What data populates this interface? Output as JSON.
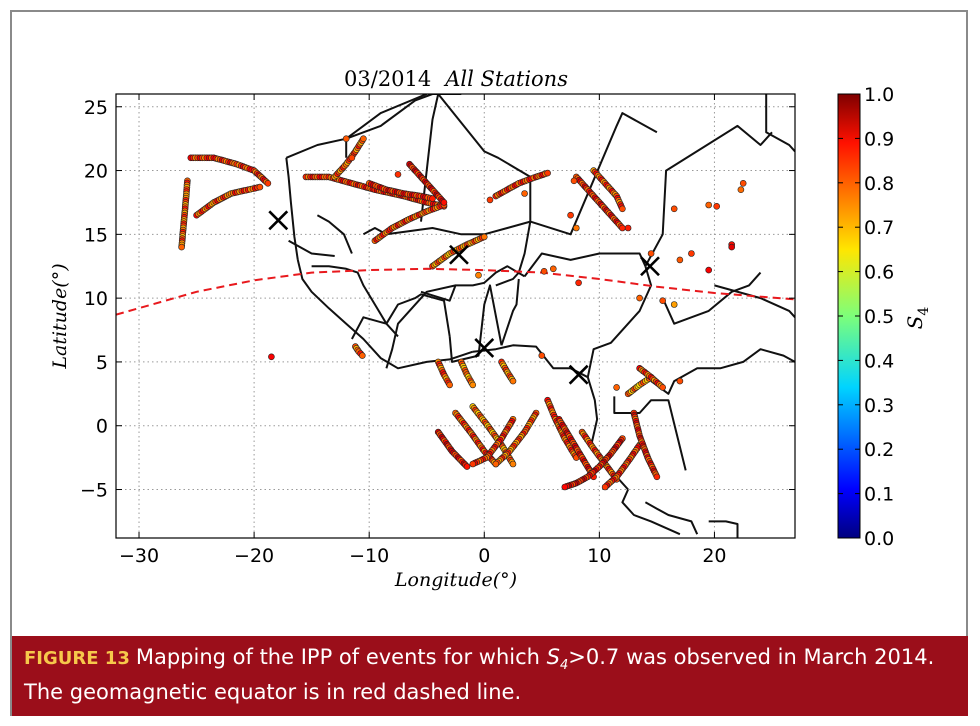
{
  "chart_data": {
    "type": "scatter",
    "title_date": "03/2014",
    "title_suffix": "All Stations",
    "xlabel": "Longitude(°)",
    "ylabel": "Latitude(°)",
    "xlim": [
      -32,
      27
    ],
    "ylim": [
      -8.8,
      26
    ],
    "xticks": [
      "−30",
      "−20",
      "−10",
      "0",
      "10",
      "20"
    ],
    "xtick_values": [
      -30,
      -20,
      -10,
      0,
      10,
      20
    ],
    "yticks": [
      "25",
      "20",
      "15",
      "10",
      "5",
      "0",
      "−5"
    ],
    "ytick_values": [
      25,
      20,
      15,
      10,
      5,
      0,
      -5
    ],
    "grid": true,
    "colorbar": {
      "label": "S4",
      "range": [
        0.0,
        1.0
      ],
      "ticks": [
        "1.0",
        "0.9",
        "0.8",
        "0.7",
        "0.6",
        "0.5",
        "0.4",
        "0.3",
        "0.2",
        "0.1",
        "0.0"
      ],
      "tick_values": [
        1.0,
        0.9,
        0.8,
        0.7,
        0.6,
        0.5,
        0.4,
        0.3,
        0.2,
        0.1,
        0.0
      ],
      "colormap": "jet"
    },
    "stations": [
      {
        "lon": -17.9,
        "lat": 16.1
      },
      {
        "lon": -2.2,
        "lat": 13.4
      },
      {
        "lon": 0.0,
        "lat": 6.1
      },
      {
        "lon": 8.2,
        "lat": 4.0
      },
      {
        "lon": 14.4,
        "lat": 12.5
      }
    ],
    "magnetic_equator": {
      "lon": [
        -32,
        -25,
        -20,
        -15,
        -10,
        -5,
        0,
        5,
        10,
        15,
        20,
        27
      ],
      "lat": [
        8.7,
        10.5,
        11.4,
        12.0,
        12.2,
        12.3,
        12.2,
        12.0,
        11.5,
        10.9,
        10.4,
        9.9
      ]
    },
    "ipp_tracks": [
      {
        "lon": [
          -25.8,
          -25.9,
          -26.0,
          -26.1,
          -26.2,
          -26.3
        ],
        "lat": [
          19.2,
          18.0,
          17.0,
          16.0,
          15.0,
          14.0
        ],
        "s4": 0.78
      },
      {
        "lon": [
          -25.5,
          -23.5,
          -21.5,
          -20.0,
          -18.8
        ],
        "lat": [
          21.0,
          21.0,
          20.5,
          20.0,
          19.0
        ],
        "s4": 0.82
      },
      {
        "lon": [
          -25.0,
          -23.5,
          -22.0,
          -20.5,
          -19.5
        ],
        "lat": [
          16.5,
          17.5,
          18.2,
          18.5,
          18.7
        ],
        "s4": 0.8
      },
      {
        "lon": [
          -15.5,
          -13.5,
          -11.5,
          -9.5,
          -7.0,
          -5.0,
          -3.5
        ],
        "lat": [
          19.5,
          19.5,
          19.0,
          18.5,
          18.0,
          17.5,
          17.2
        ],
        "s4": 0.83
      },
      {
        "lon": [
          -13.0,
          -12.0,
          -11.2,
          -10.5
        ],
        "lat": [
          19.5,
          20.5,
          21.5,
          22.5
        ],
        "s4": 0.78
      },
      {
        "lon": [
          -10.0,
          -8.5,
          -7.0,
          -5.5,
          -4.5
        ],
        "lat": [
          19.0,
          18.5,
          18.2,
          18.0,
          17.8
        ],
        "s4": 0.85
      },
      {
        "lon": [
          -9.5,
          -8.0,
          -6.5,
          -5.0,
          -3.5
        ],
        "lat": [
          14.5,
          15.5,
          16.2,
          16.8,
          17.3
        ],
        "s4": 0.8
      },
      {
        "lon": [
          -6.5,
          -5.5,
          -4.5,
          -3.5
        ],
        "lat": [
          20.5,
          19.5,
          18.5,
          17.5
        ],
        "s4": 0.86
      },
      {
        "lon": [
          -4.5,
          -3.0,
          -1.5,
          0.0
        ],
        "lat": [
          12.5,
          13.5,
          14.2,
          14.8
        ],
        "s4": 0.76
      },
      {
        "lon": [
          1.0,
          2.0,
          3.0,
          4.5,
          5.5
        ],
        "lat": [
          18.0,
          18.5,
          19.0,
          19.5,
          19.8
        ],
        "s4": 0.82
      },
      {
        "lon": [
          8.0,
          9.0,
          10.0,
          11.0,
          12.0
        ],
        "lat": [
          19.5,
          18.5,
          17.5,
          16.5,
          15.5
        ],
        "s4": 0.84
      },
      {
        "lon": [
          9.5,
          10.5,
          11.5,
          12.0
        ],
        "lat": [
          20.0,
          19.0,
          18.0,
          17.0
        ],
        "s4": 0.8
      },
      {
        "lon": [
          -4.0,
          -3.5,
          -3.0
        ],
        "lat": [
          5.0,
          4.0,
          3.2
        ],
        "s4": 0.78
      },
      {
        "lon": [
          -2.0,
          -1.5,
          -1.0
        ],
        "lat": [
          5.0,
          4.0,
          3.2
        ],
        "s4": 0.74
      },
      {
        "lon": [
          1.5,
          2.0,
          2.5
        ],
        "lat": [
          5.0,
          4.2,
          3.5
        ],
        "s4": 0.76
      },
      {
        "lon": [
          -4.0,
          -2.8,
          -1.5
        ],
        "lat": [
          -0.5,
          -2.0,
          -3.2
        ],
        "s4": 0.86
      },
      {
        "lon": [
          -2.5,
          -1.2,
          0.0,
          1.0
        ],
        "lat": [
          1.0,
          -0.5,
          -2.0,
          -3.0
        ],
        "s4": 0.8
      },
      {
        "lon": [
          -1.0,
          0.3,
          1.5,
          2.5
        ],
        "lat": [
          1.5,
          0.0,
          -1.5,
          -3.0
        ],
        "s4": 0.75
      },
      {
        "lon": [
          2.5,
          1.5,
          0.2,
          -1.0
        ],
        "lat": [
          0.5,
          -1.0,
          -2.5,
          -3.0
        ],
        "s4": 0.82
      },
      {
        "lon": [
          4.5,
          3.5,
          2.2,
          1.0
        ],
        "lat": [
          1.0,
          -0.5,
          -2.0,
          -3.0
        ],
        "s4": 0.78
      },
      {
        "lon": [
          5.5,
          6.2,
          7.0,
          8.0
        ],
        "lat": [
          2.0,
          0.5,
          -1.0,
          -2.5
        ],
        "s4": 0.8
      },
      {
        "lon": [
          6.5,
          7.5,
          8.5,
          9.5
        ],
        "lat": [
          0.5,
          -1.0,
          -2.5,
          -4.0
        ],
        "s4": 0.85
      },
      {
        "lon": [
          8.5,
          9.5,
          10.5,
          11.5
        ],
        "lat": [
          -0.5,
          -1.8,
          -3.0,
          -4.2
        ],
        "s4": 0.8
      },
      {
        "lon": [
          12.0,
          11.0,
          10.0,
          9.0,
          8.0,
          7.0
        ],
        "lat": [
          -1.0,
          -2.2,
          -3.2,
          -4.0,
          -4.5,
          -4.8
        ],
        "s4": 0.87
      },
      {
        "lon": [
          13.5,
          12.5,
          11.5,
          10.5
        ],
        "lat": [
          -1.5,
          -2.8,
          -4.0,
          -4.8
        ],
        "s4": 0.82
      },
      {
        "lon": [
          13.0,
          13.5,
          14.2,
          15.0
        ],
        "lat": [
          1.0,
          -0.8,
          -2.5,
          -4.0
        ],
        "s4": 0.84
      },
      {
        "lon": [
          12.5,
          13.5,
          14.5
        ],
        "lat": [
          2.5,
          3.2,
          3.8
        ],
        "s4": 0.74
      },
      {
        "lon": [
          13.5,
          14.5,
          15.5
        ],
        "lat": [
          4.5,
          3.8,
          3.0
        ],
        "s4": 0.8
      },
      {
        "lon": [
          -11.2,
          -10.9,
          -10.6
        ],
        "lat": [
          6.2,
          5.8,
          5.5
        ],
        "s4": 0.78
      }
    ],
    "ipp_points": [
      {
        "lon": -18.5,
        "lat": 5.4,
        "s4": 0.88
      },
      {
        "lon": -0.5,
        "lat": 11.8,
        "s4": 0.75
      },
      {
        "lon": 5.2,
        "lat": 12.1,
        "s4": 0.8
      },
      {
        "lon": 6.0,
        "lat": 12.3,
        "s4": 0.78
      },
      {
        "lon": 7.5,
        "lat": 16.5,
        "s4": 0.82
      },
      {
        "lon": 8.0,
        "lat": 15.5,
        "s4": 0.76
      },
      {
        "lon": 8.2,
        "lat": 11.2,
        "s4": 0.84
      },
      {
        "lon": 16.5,
        "lat": 17.0,
        "s4": 0.8
      },
      {
        "lon": 19.5,
        "lat": 17.3,
        "s4": 0.78
      },
      {
        "lon": 20.2,
        "lat": 17.2,
        "s4": 0.82
      },
      {
        "lon": 22.3,
        "lat": 18.5,
        "s4": 0.77
      },
      {
        "lon": 22.5,
        "lat": 19.0,
        "s4": 0.8
      },
      {
        "lon": 21.5,
        "lat": 14.2,
        "s4": 0.86
      },
      {
        "lon": 21.5,
        "lat": 14.0,
        "s4": 0.9
      },
      {
        "lon": 19.5,
        "lat": 12.2,
        "s4": 0.88
      },
      {
        "lon": 16.5,
        "lat": 9.5,
        "s4": 0.72
      },
      {
        "lon": 15.5,
        "lat": 9.8,
        "s4": 0.8
      },
      {
        "lon": 13.5,
        "lat": 10.0,
        "s4": 0.78
      },
      {
        "lon": 12.5,
        "lat": 15.5,
        "s4": 0.85
      },
      {
        "lon": 17.0,
        "lat": 13.0,
        "s4": 0.79
      },
      {
        "lon": 14.5,
        "lat": 13.5,
        "s4": 0.8
      },
      {
        "lon": 3.5,
        "lat": 18.2,
        "s4": 0.78
      },
      {
        "lon": 0.5,
        "lat": 17.7,
        "s4": 0.82
      },
      {
        "lon": 7.8,
        "lat": 19.2,
        "s4": 0.8
      },
      {
        "lon": -7.5,
        "lat": 19.7,
        "s4": 0.83
      },
      {
        "lon": -11.5,
        "lat": 21.0,
        "s4": 0.81
      },
      {
        "lon": -12.0,
        "lat": 22.5,
        "s4": 0.79
      },
      {
        "lon": 5.0,
        "lat": 5.5,
        "s4": 0.8
      },
      {
        "lon": 11.5,
        "lat": 3.0,
        "s4": 0.78
      },
      {
        "lon": 17.0,
        "lat": 3.5,
        "s4": 0.8
      },
      {
        "lon": 18.0,
        "lat": 13.5,
        "s4": 0.82
      }
    ],
    "map_borders": [
      {
        "lon": [
          -17.2,
          -17.0,
          -16.8,
          -16.5,
          -16.2
        ],
        "lat": [
          21.0,
          19.5,
          17.5,
          14.8,
          13.0
        ]
      },
      {
        "lon": [
          -16.2,
          -15.8,
          -15.0,
          -13.5,
          -12.0,
          -10.5,
          -9.0,
          -7.5,
          -5.0,
          -3.0,
          -1.0
        ],
        "lat": [
          13.0,
          11.5,
          10.5,
          9.2,
          8.0,
          6.8,
          5.3,
          4.5,
          5.0,
          5.2,
          5.8
        ]
      },
      {
        "lon": [
          -1.0,
          1.0,
          2.5,
          4.5,
          6.0,
          7.5,
          9.0
        ],
        "lat": [
          5.8,
          6.0,
          6.3,
          6.2,
          4.5,
          4.5,
          3.8
        ]
      },
      {
        "lon": [
          9.0,
          9.6,
          9.8,
          9.3,
          11.0,
          12.5
        ],
        "lat": [
          3.8,
          2.0,
          0.5,
          -1.5,
          -3.5,
          -5.0
        ]
      },
      {
        "lon": [
          12.5,
          12.0,
          13.0,
          14.5,
          17.0
        ],
        "lat": [
          -5.0,
          -6.0,
          -7.0,
          -7.5,
          -8.5
        ]
      },
      {
        "lon": [
          -17.2,
          -14.5,
          -12.0,
          -9.0,
          -6.0,
          -4.5,
          -3.5,
          -2.0
        ],
        "lat": [
          21.0,
          22.0,
          22.5,
          23.5,
          25.5,
          26.0,
          26.0,
          26.0
        ]
      },
      {
        "lon": [
          -12.0,
          -12.0,
          -9.0,
          -5.0
        ],
        "lat": [
          21.0,
          22.5,
          24.5,
          26.0
        ]
      },
      {
        "lon": [
          -10.5,
          -9.5,
          -8.5,
          -4.5,
          -2.0,
          0.0,
          2.0,
          4.0
        ],
        "lat": [
          15.0,
          15.5,
          15.0,
          15.5,
          15.0,
          15.0,
          15.5,
          16.0
        ]
      },
      {
        "lon": [
          -5.5,
          -5.0,
          -4.5,
          -4.0,
          0.0,
          1.2,
          4.0
        ],
        "lat": [
          16.0,
          20.0,
          24.0,
          26.0,
          21.5,
          21.0,
          19.5
        ]
      },
      {
        "lon": [
          4.0,
          4.0,
          7.5,
          11.5,
          12.0,
          15.0
        ],
        "lat": [
          19.5,
          16.0,
          15.0,
          23.5,
          24.5,
          23.0
        ]
      },
      {
        "lon": [
          4.0,
          3.5,
          3.0,
          2.5,
          1.0
        ],
        "lat": [
          16.0,
          13.5,
          12.0,
          11.5,
          11.0
        ]
      },
      {
        "lon": [
          -5.5,
          -3.0,
          -2.5,
          -1.0,
          0.0,
          1.0,
          2.0,
          3.5
        ],
        "lat": [
          10.5,
          9.8,
          11.0,
          11.0,
          11.2,
          12.0,
          12.5,
          11.7
        ]
      },
      {
        "lon": [
          3.5,
          5.0,
          7.5,
          10.0,
          13.5,
          14.0
        ],
        "lat": [
          11.7,
          13.5,
          13.0,
          13.5,
          13.5,
          12.5
        ]
      },
      {
        "lon": [
          14.0,
          14.5,
          13.5,
          12.5,
          11.0,
          9.5,
          9.0
        ],
        "lat": [
          12.5,
          11.0,
          9.0,
          8.0,
          6.5,
          6.0,
          3.8
        ]
      },
      {
        "lon": [
          14.0,
          15.5,
          15.8,
          22.0,
          24.0,
          25.0
        ],
        "lat": [
          12.5,
          15.0,
          20.0,
          23.5,
          22.0,
          23.0
        ]
      },
      {
        "lon": [
          15.5,
          16.5,
          18.0,
          19.5,
          21.5,
          23.0,
          24.0
        ],
        "lat": [
          10.0,
          8.0,
          8.5,
          9.0,
          10.5,
          11.0,
          12.0
        ]
      },
      {
        "lon": [
          14.5,
          16.0,
          16.5,
          18.5,
          20.5,
          22.5,
          24.0,
          26.0,
          27.0
        ],
        "lat": [
          3.5,
          2.5,
          3.5,
          4.5,
          4.5,
          5.0,
          6.0,
          5.5,
          5.0
        ]
      },
      {
        "lon": [
          11.3,
          11.3,
          13.5,
          14.5,
          16.0,
          17.5
        ],
        "lat": [
          2.3,
          1.0,
          1.0,
          2.0,
          2.0,
          -3.5
        ]
      },
      {
        "lon": [
          -15.0,
          -13.5,
          -12.0,
          -11.0,
          -10.5,
          -9.5,
          -8.5,
          -7.5
        ],
        "lat": [
          12.5,
          12.5,
          12.3,
          12.0,
          11.0,
          9.5,
          8.0,
          7.0
        ]
      },
      {
        "lon": [
          -11.5,
          -10.5,
          -8.5,
          -7.5,
          -6.0,
          -5.5,
          -3.5,
          -3.0
        ],
        "lat": [
          6.8,
          8.5,
          8.0,
          9.5,
          10.0,
          10.3,
          9.8,
          7.0
        ]
      },
      {
        "lon": [
          -3.0,
          -2.8,
          -0.5,
          0.0,
          0.5,
          1.5
        ],
        "lat": [
          7.0,
          5.0,
          5.5,
          9.5,
          11.0,
          6.3
        ]
      },
      {
        "lon": [
          1.5,
          2.5,
          2.8,
          3.0
        ],
        "lat": [
          6.3,
          9.0,
          9.5,
          11.5
        ]
      },
      {
        "lon": [
          -8.5,
          -8.0,
          -7.5,
          -5.0,
          -2.5
        ],
        "lat": [
          4.5,
          6.0,
          8.0,
          10.5,
          11.0
        ]
      },
      {
        "lon": [
          20.0,
          24.0,
          26.5,
          27.0
        ],
        "lat": [
          11.0,
          10.0,
          9.0,
          8.5
        ]
      },
      {
        "lon": [
          14.0,
          15.0,
          16.0,
          18.0,
          18.5
        ],
        "lat": [
          -6.0,
          -6.5,
          -7.0,
          -7.5,
          -8.5
        ]
      },
      {
        "lon": [
          19.5,
          21.0,
          22.0,
          22.0
        ],
        "lat": [
          -7.5,
          -7.5,
          -7.7,
          -8.8
        ]
      },
      {
        "lon": [
          24.5,
          24.5,
          26.5,
          27.0
        ],
        "lat": [
          26.0,
          23.0,
          22.0,
          21.5
        ]
      },
      {
        "lon": [
          -14.5,
          -13.5,
          -12.2,
          -11.5
        ],
        "lat": [
          16.5,
          16.0,
          15.0,
          13.5
        ]
      },
      {
        "lon": [
          -17.0,
          -15.0,
          -13.0
        ],
        "lat": [
          14.5,
          13.5,
          13.3
        ]
      }
    ]
  },
  "caption": {
    "figure_label": "FIGURE 13",
    "text_before": "Mapping of the IPP of events for which ",
    "symbol": "S",
    "symbol_sub": "4",
    "text_after": ">0.7 was observed in March 2014.",
    "line2": "The geomagnetic equator is in red dashed line."
  }
}
